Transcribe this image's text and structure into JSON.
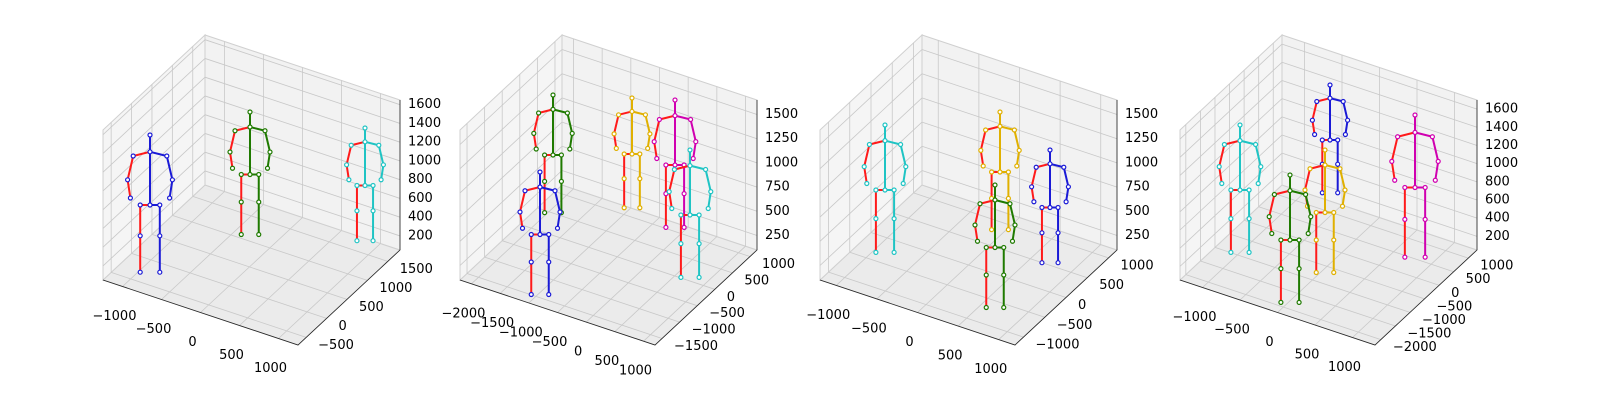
{
  "chart_data": [
    {
      "type": "scatter3d",
      "xlim": [
        -1250,
        1250
      ],
      "ylim": [
        -700,
        1800
      ],
      "zlim": [
        50,
        1650
      ],
      "xticks": [
        {
          "value": -1000,
          "label": "−1000"
        },
        {
          "value": -500,
          "label": "−500"
        },
        0,
        500,
        1000
      ],
      "yticks": [
        {
          "value": -500,
          "label": "−500"
        },
        0,
        500,
        1000,
        1500
      ],
      "zticks": [
        200,
        400,
        600,
        800,
        1000,
        1200,
        1400,
        1600
      ]
    },
    {
      "type": "scatter3d",
      "xlim": [
        -2200,
        1200
      ],
      "ylim": [
        -1700,
        1200
      ],
      "zlim": [
        100,
        1650
      ],
      "xticks": [
        {
          "value": -2000,
          "label": "−2000"
        },
        {
          "value": -1500,
          "label": "−1500"
        },
        {
          "value": -1000,
          "label": "−1000"
        },
        {
          "value": -500,
          "label": "−500"
        },
        0,
        500,
        1000
      ],
      "yticks": [
        {
          "value": -1500,
          "label": "−1500"
        },
        {
          "value": -1000,
          "label": "−1000"
        },
        {
          "value": -500,
          "label": "−500"
        },
        0,
        500,
        1000
      ],
      "zticks": [
        250,
        500,
        750,
        1000,
        1250,
        1500
      ]
    },
    {
      "type": "scatter3d",
      "xlim": [
        -1200,
        1200
      ],
      "ylim": [
        -1200,
        1200
      ],
      "zlim": [
        100,
        1650
      ],
      "xticks": [
        {
          "value": -1000,
          "label": "−1000"
        },
        {
          "value": -500,
          "label": "−500"
        },
        0,
        500,
        1000
      ],
      "yticks": [
        {
          "value": -1000,
          "label": "−1000"
        },
        {
          "value": -500,
          "label": "−500"
        },
        0,
        500,
        1000
      ],
      "zticks": [
        250,
        500,
        750,
        1000,
        1250,
        1500
      ]
    },
    {
      "type": "scatter3d",
      "xlim": [
        -1300,
        1300
      ],
      "ylim": [
        -2200,
        1300
      ],
      "zlim": [
        50,
        1700
      ],
      "xticks": [
        {
          "value": -1000,
          "label": "−1000"
        },
        {
          "value": -500,
          "label": "−500"
        },
        0,
        500,
        1000
      ],
      "yticks": [
        {
          "value": -2000,
          "label": "−2000"
        },
        {
          "value": -1500,
          "label": "−1500"
        },
        {
          "value": -1000,
          "label": "−1000"
        },
        {
          "value": -500,
          "label": "−500"
        },
        0,
        500,
        1000
      ],
      "zticks": [
        200,
        400,
        600,
        800,
        1000,
        1200,
        1400,
        1600
      ]
    }
  ]
}
